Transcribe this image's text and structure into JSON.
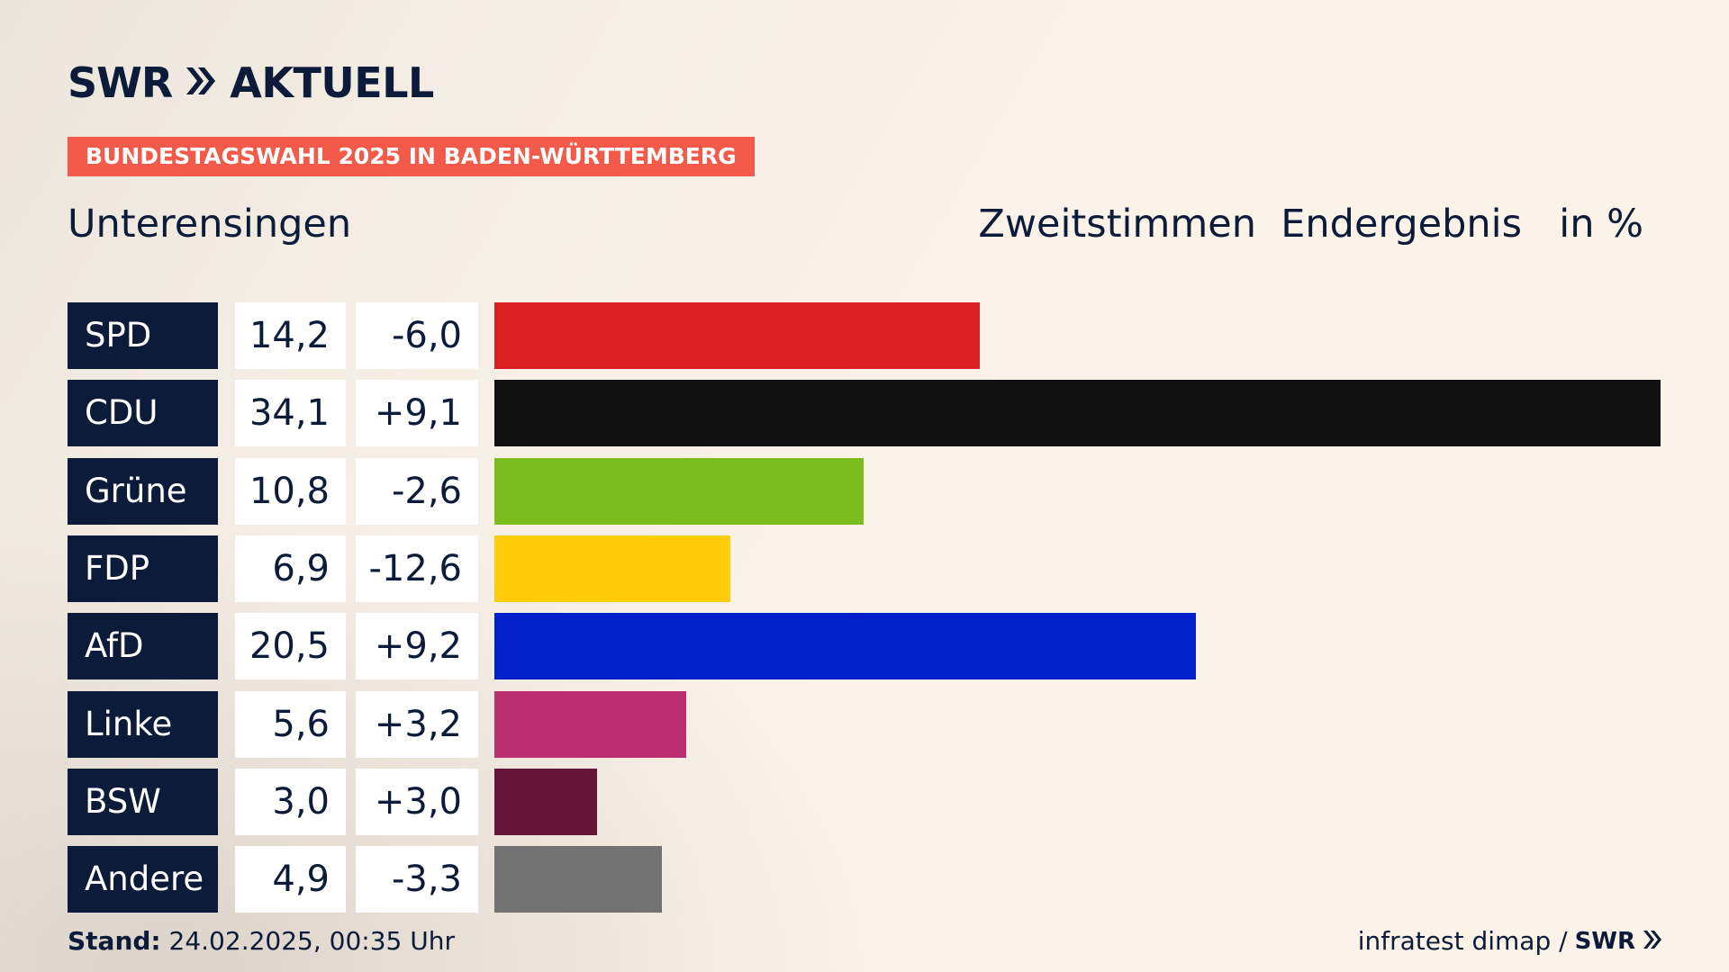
{
  "brand": {
    "logo_swr": "SWR",
    "logo_chevrons": "»",
    "logo_aktuell": "AKTUELL"
  },
  "kicker": "BUNDESTAGSWAHL 2025 IN BADEN-WÜRTTEMBERG",
  "place": "Unterensingen",
  "header": {
    "vote_type": "Zweitstimmen",
    "status": "Endergebnis",
    "unit": "in %"
  },
  "footer": {
    "stand_label": "Stand:",
    "stand_value": "24.02.2025, 00:35 Uhr",
    "source": "infratest dimap /",
    "source_brand": "SWR",
    "source_chevrons": "»"
  },
  "chart_data": {
    "type": "bar",
    "categories": [
      "SPD",
      "CDU",
      "Grüne",
      "FDP",
      "AfD",
      "Linke",
      "BSW",
      "Andere"
    ],
    "values": [
      14.2,
      34.1,
      10.8,
      6.9,
      20.5,
      5.6,
      3.0,
      4.9
    ],
    "values_text": [
      "14,2",
      "34,1",
      "10,8",
      "6,9",
      "20,5",
      "5,6",
      "3,0",
      "4,9"
    ],
    "diff_text": [
      "-6,0",
      "+9,1",
      "-2,6",
      "-12,6",
      "+9,2",
      "+3,2",
      "+3,0",
      "-3,3"
    ],
    "colors": [
      "#d91f21",
      "#111111",
      "#7bbd1d",
      "#ffcc0a",
      "#0021c9",
      "#bb2f72",
      "#661739",
      "#727272"
    ],
    "xlim": [
      0,
      34.1
    ]
  }
}
